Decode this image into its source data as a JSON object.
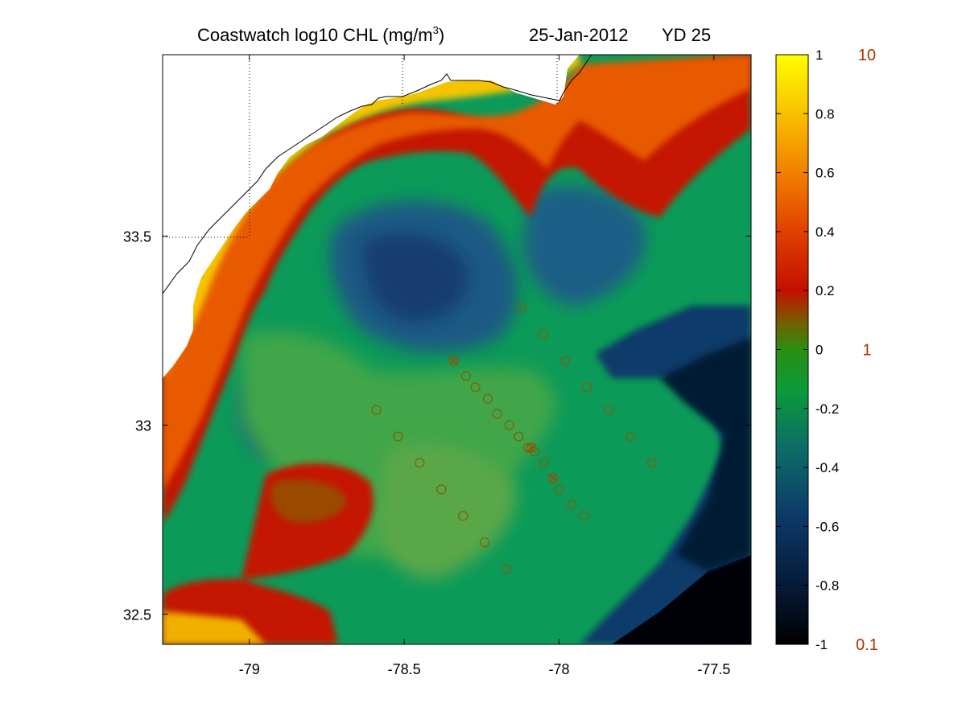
{
  "title": {
    "main": "Coastwatch  log10  CHL (mg/m",
    "superscript": "3",
    "close": ")",
    "date": "25-Jan-2012",
    "yearday": "YD 25"
  },
  "map": {
    "lon_range": [
      -79.28,
      -77.38
    ],
    "lat_range": [
      32.42,
      33.98
    ],
    "x_ticks": [
      {
        "value": -79.0,
        "label": "-79"
      },
      {
        "value": -78.5,
        "label": "-78.5"
      },
      {
        "value": -78.0,
        "label": "-78"
      },
      {
        "value": -77.5,
        "label": "-77.5"
      }
    ],
    "y_ticks": [
      {
        "value": 33.5,
        "label": "33.5"
      },
      {
        "value": 33.0,
        "label": "33"
      },
      {
        "value": 32.5,
        "label": "32.5"
      }
    ],
    "grid_dotted_lon": [
      -79.0,
      -78.5,
      -78.0
    ],
    "grid_dotted_lat": [
      33.5
    ]
  },
  "colorbar": {
    "ticks": [
      {
        "value": 1,
        "label": "1"
      },
      {
        "value": 0.8,
        "label": "0.8"
      },
      {
        "value": 0.6,
        "label": "0.6"
      },
      {
        "value": 0.4,
        "label": "0.4"
      },
      {
        "value": 0.2,
        "label": "0.2"
      },
      {
        "value": 0,
        "label": "0"
      },
      {
        "value": -0.2,
        "label": "-0.2"
      },
      {
        "value": -0.4,
        "label": "-0.4"
      },
      {
        "value": -0.6,
        "label": "-0.6"
      },
      {
        "value": -0.8,
        "label": "-0.8"
      },
      {
        "value": -1,
        "label": "-1"
      }
    ],
    "range": [
      -1,
      1
    ],
    "linear_labels": [
      {
        "value": 1,
        "label": "10"
      },
      {
        "value": 0,
        "label": "1"
      },
      {
        "value": -1,
        "label": "0.1"
      }
    ],
    "linear_label_color": "#b03000"
  },
  "stations": {
    "circle_color": "#8a5a00",
    "circles": [
      [
        -78.12,
        33.31
      ],
      [
        -78.05,
        33.24
      ],
      [
        -77.98,
        33.17
      ],
      [
        -77.91,
        33.1
      ],
      [
        -78.3,
        33.13
      ],
      [
        -78.27,
        33.1
      ],
      [
        -78.23,
        33.07
      ],
      [
        -78.2,
        33.03
      ],
      [
        -78.16,
        33.0
      ],
      [
        -78.13,
        32.97
      ],
      [
        -78.1,
        32.94
      ],
      [
        -78.08,
        32.93
      ],
      [
        -78.05,
        32.9
      ],
      [
        -78.02,
        32.86
      ],
      [
        -78.0,
        32.83
      ],
      [
        -77.96,
        32.79
      ],
      [
        -77.92,
        32.76
      ],
      [
        -77.84,
        33.04
      ],
      [
        -77.77,
        32.97
      ],
      [
        -77.7,
        32.9
      ],
      [
        -78.59,
        33.04
      ],
      [
        -78.52,
        32.97
      ],
      [
        -78.45,
        32.9
      ],
      [
        -78.38,
        32.83
      ],
      [
        -78.31,
        32.76
      ],
      [
        -78.24,
        32.69
      ],
      [
        -78.17,
        32.62
      ]
    ],
    "crosses": [
      [
        -78.34,
        33.17
      ],
      [
        -78.09,
        32.94
      ],
      [
        -78.02,
        32.86
      ]
    ]
  },
  "chart_data": {
    "type": "heatmap",
    "title": "Coastwatch  log10  CHL (mg/m3)   25-Jan-2012   YD 25",
    "variable": "log10 CHL (mg/m^3)",
    "xlabel": "",
    "ylabel": "",
    "xlim": [
      -79.28,
      -77.38
    ],
    "ylim": [
      32.42,
      33.98
    ],
    "x_ticks": [
      -79,
      -78.5,
      -78,
      -77.5
    ],
    "y_ticks": [
      32.5,
      33,
      33.5
    ],
    "colorbar_range": [
      -1,
      1
    ],
    "colorbar_ticks": [
      -1,
      -0.8,
      -0.6,
      -0.4,
      -0.2,
      0,
      0.2,
      0.4,
      0.6,
      0.8,
      1
    ],
    "colorbar_linear_labels": [
      0.1,
      1,
      10
    ],
    "colormap": "black-blue-green-red-orange-yellow"
  }
}
